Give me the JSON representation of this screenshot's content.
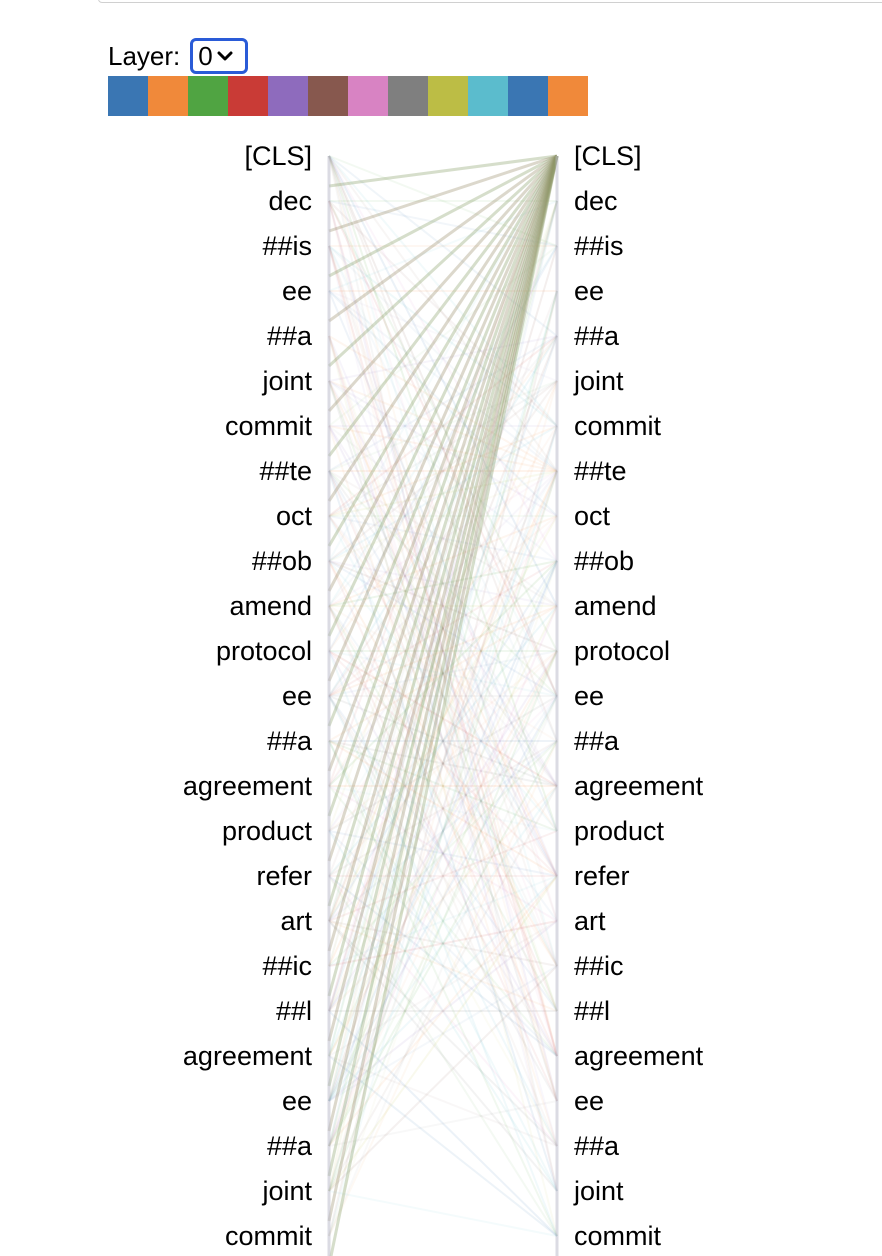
{
  "layer_control": {
    "label": "Layer:",
    "selected": "0"
  },
  "head_colors": [
    "#3a76b3",
    "#f0893a",
    "#50a442",
    "#c93b36",
    "#8e6bbd",
    "#87584e",
    "#d883c3",
    "#7f7f7f",
    "#bcbd45",
    "#5bbccd",
    "#3a76b3",
    "#f0893a"
  ],
  "tokens": [
    "[CLS]",
    "dec",
    "##is",
    "ee",
    "##a",
    "joint",
    "commit",
    "##te",
    "oct",
    "##ob",
    "amend",
    "protocol",
    "ee",
    "##a",
    "agreement",
    "product",
    "refer",
    "art",
    "##ic",
    "##l",
    "agreement",
    "ee",
    "##a",
    "joint",
    "commit"
  ]
}
